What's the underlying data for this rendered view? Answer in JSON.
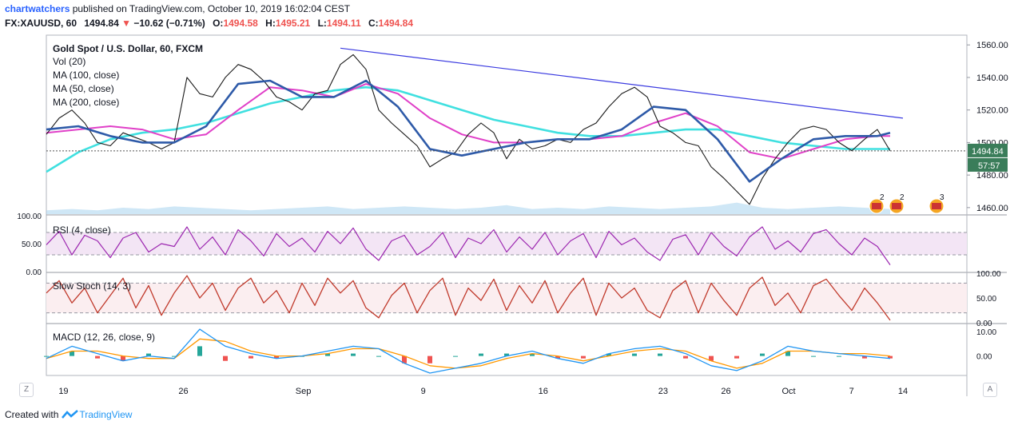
{
  "header": {
    "user": "chartwatchers",
    "published_text": " published on TradingView.com, October 10, 2019 16:02:04 CEST",
    "symbol": "FX:XAUUSD, 60",
    "last": "1494.84",
    "change": "−10.62 (−0.71%)",
    "o_label": "O:",
    "o": "1494.58",
    "h_label": "H:",
    "h": "1495.21",
    "l_label": "L:",
    "l": "1494.11",
    "c_label": "C:",
    "c": "1494.84"
  },
  "legend": {
    "title": "Gold Spot / U.S. Dollar, 60, FXCM",
    "vol": "Vol (20)",
    "ma100": "MA (100, close)",
    "ma50": "MA (50, close)",
    "ma200": "MA (200, close)"
  },
  "price_tag": "1494.84",
  "countdown": "57:57",
  "footer": {
    "created": "Created with",
    "brand": "TradingView"
  },
  "nav": {
    "left": "Z",
    "right": "A"
  },
  "colors": {
    "ma50": "#2e5aa8",
    "ma100": "#e040c8",
    "ma200": "#40e0e0",
    "trendline": "#3b3be0",
    "price": "#1a1a1a",
    "volume": "#a8d4ee",
    "rsi": "#9c27b0",
    "stoch": "#c0392b",
    "macd": "#2196f3",
    "signal": "#ff9800",
    "tag_bg": "#3a7d5a"
  },
  "events": [
    {
      "icon": "us-flag-icon",
      "count": "2",
      "x": "Oct 9"
    },
    {
      "icon": "us-flag-icon",
      "count": "2",
      "x": "Oct 10"
    },
    {
      "icon": "us-flag-icon",
      "count": "3",
      "x": "Oct 11"
    }
  ],
  "chart_data": {
    "type": "line",
    "x_ticks": [
      "19",
      "26",
      "Sep",
      "9",
      "16",
      "23",
      "26",
      "Oct",
      "7",
      "14"
    ],
    "price_axis": {
      "ticks": [
        "1560.00",
        "1540.00",
        "1520.00",
        "1500.00",
        "1480.00",
        "1460.00"
      ],
      "ylim": [
        1456,
        1566
      ]
    },
    "price_series": {
      "name": "XAUUSD",
      "x": [
        0,
        4,
        8,
        12,
        16,
        20,
        24,
        28,
        32,
        36,
        40,
        44,
        48,
        52,
        56,
        60,
        64,
        68,
        72,
        76,
        80,
        84,
        88,
        92,
        96,
        100,
        104,
        108,
        112,
        116,
        120,
        124,
        128,
        132,
        136,
        140,
        144,
        148,
        152,
        156,
        160,
        164,
        168,
        172,
        176,
        180,
        184,
        188,
        192,
        196,
        200,
        204,
        208,
        212,
        216,
        220,
        224,
        228,
        232,
        236,
        240,
        244,
        248,
        252,
        256,
        260,
        264
      ],
      "values": [
        1505,
        1515,
        1520,
        1512,
        1500,
        1498,
        1506,
        1503,
        1500,
        1496,
        1500,
        1540,
        1530,
        1528,
        1540,
        1548,
        1545,
        1538,
        1528,
        1525,
        1520,
        1530,
        1532,
        1548,
        1554,
        1545,
        1520,
        1512,
        1505,
        1498,
        1485,
        1490,
        1494,
        1505,
        1512,
        1506,
        1490,
        1502,
        1496,
        1498,
        1502,
        1500,
        1508,
        1512,
        1522,
        1530,
        1534,
        1528,
        1510,
        1506,
        1500,
        1498,
        1485,
        1478,
        1470,
        1462,
        1478,
        1490,
        1500,
        1508,
        1510,
        1508,
        1500,
        1495,
        1502,
        1508,
        1494.84
      ]
    },
    "ma50": {
      "name": "MA (50, close)",
      "x": [
        0,
        10,
        20,
        30,
        40,
        50,
        60,
        70,
        80,
        90,
        100,
        110,
        120,
        130,
        140,
        150,
        160,
        170,
        180,
        190,
        200,
        210,
        220,
        230,
        240,
        250,
        260,
        264
      ],
      "values": [
        1508,
        1510,
        1504,
        1500,
        1500,
        1510,
        1536,
        1538,
        1528,
        1528,
        1538,
        1522,
        1496,
        1492,
        1496,
        1500,
        1502,
        1502,
        1508,
        1522,
        1520,
        1502,
        1476,
        1490,
        1502,
        1504,
        1504,
        1506
      ]
    },
    "ma100": {
      "name": "MA (100, close)",
      "x": [
        0,
        10,
        20,
        30,
        40,
        50,
        60,
        70,
        80,
        90,
        100,
        110,
        120,
        130,
        140,
        150,
        160,
        170,
        180,
        190,
        200,
        210,
        220,
        230,
        240,
        250,
        260,
        264
      ],
      "values": [
        1506,
        1508,
        1510,
        1508,
        1502,
        1505,
        1520,
        1534,
        1532,
        1528,
        1536,
        1530,
        1515,
        1505,
        1500,
        1500,
        1502,
        1502,
        1504,
        1512,
        1518,
        1510,
        1494,
        1490,
        1496,
        1502,
        1504,
        1504
      ]
    },
    "ma200": {
      "name": "MA (200, close)",
      "x": [
        0,
        10,
        20,
        30,
        40,
        50,
        60,
        70,
        80,
        90,
        100,
        110,
        120,
        130,
        140,
        150,
        160,
        170,
        180,
        190,
        200,
        210,
        220,
        230,
        240,
        250,
        260,
        264
      ],
      "values": [
        1482,
        1494,
        1502,
        1506,
        1508,
        1512,
        1518,
        1524,
        1528,
        1532,
        1534,
        1532,
        1526,
        1520,
        1514,
        1510,
        1506,
        1504,
        1504,
        1506,
        1508,
        1508,
        1504,
        1500,
        1498,
        1496,
        1496,
        1496
      ]
    },
    "trendline": {
      "x": [
        92,
        268
      ],
      "values": [
        1558,
        1515
      ]
    },
    "volume": {
      "x": [
        0,
        8,
        16,
        24,
        32,
        40,
        48,
        56,
        64,
        72,
        80,
        88,
        96,
        104,
        112,
        120,
        128,
        136,
        144,
        152,
        160,
        168,
        176,
        184,
        192,
        200,
        208,
        216,
        224,
        232,
        240,
        248,
        256,
        264
      ],
      "values": [
        3,
        4,
        3,
        5,
        4,
        6,
        5,
        4,
        3,
        4,
        5,
        6,
        4,
        5,
        6,
        5,
        4,
        5,
        7,
        4,
        5,
        4,
        6,
        5,
        4,
        5,
        6,
        9,
        5,
        4,
        5,
        6,
        5,
        4
      ]
    },
    "rsi": {
      "name": "RSI (4, close)",
      "ylim": [
        0,
        100
      ],
      "ticks": [
        "100.00",
        "50.00",
        "0.00"
      ],
      "levels": [
        70,
        30
      ],
      "x": [
        0,
        4,
        8,
        12,
        16,
        20,
        24,
        28,
        32,
        36,
        40,
        44,
        48,
        52,
        56,
        60,
        64,
        68,
        72,
        76,
        80,
        84,
        88,
        92,
        96,
        100,
        104,
        108,
        112,
        116,
        120,
        124,
        128,
        132,
        136,
        140,
        144,
        148,
        152,
        156,
        160,
        164,
        168,
        172,
        176,
        180,
        184,
        188,
        192,
        196,
        200,
        204,
        208,
        212,
        216,
        220,
        224,
        228,
        232,
        236,
        240,
        244,
        248,
        252,
        256,
        260,
        264
      ],
      "values": [
        48,
        72,
        30,
        65,
        55,
        25,
        60,
        70,
        35,
        50,
        45,
        80,
        40,
        62,
        30,
        75,
        55,
        28,
        68,
        45,
        60,
        35,
        72,
        50,
        78,
        40,
        20,
        55,
        65,
        30,
        45,
        70,
        25,
        60,
        50,
        75,
        35,
        62,
        40,
        70,
        30,
        55,
        68,
        25,
        72,
        48,
        60,
        35,
        20,
        58,
        66,
        30,
        70,
        45,
        28,
        62,
        80,
        40,
        55,
        35,
        68,
        75,
        50,
        30,
        60,
        45,
        12
      ]
    },
    "stoch": {
      "name": "Slow Stoch (14, 3)",
      "ylim": [
        0,
        100
      ],
      "ticks": [
        "100.00",
        "50.00",
        "0.00"
      ],
      "levels": [
        80,
        20
      ],
      "x": [
        0,
        4,
        8,
        12,
        16,
        20,
        24,
        28,
        32,
        36,
        40,
        44,
        48,
        52,
        56,
        60,
        64,
        68,
        72,
        76,
        80,
        84,
        88,
        92,
        96,
        100,
        104,
        108,
        112,
        116,
        120,
        124,
        128,
        132,
        136,
        140,
        144,
        148,
        152,
        156,
        160,
        164,
        168,
        172,
        176,
        180,
        184,
        188,
        192,
        196,
        200,
        204,
        208,
        212,
        216,
        220,
        224,
        228,
        232,
        236,
        240,
        244,
        248,
        252,
        256,
        260,
        264
      ],
      "values": [
        60,
        85,
        40,
        70,
        20,
        55,
        90,
        30,
        75,
        15,
        60,
        95,
        50,
        80,
        25,
        70,
        90,
        40,
        65,
        20,
        80,
        35,
        90,
        60,
        85,
        30,
        10,
        55,
        80,
        20,
        65,
        90,
        15,
        70,
        45,
        88,
        25,
        75,
        40,
        85,
        20,
        60,
        90,
        15,
        80,
        50,
        70,
        25,
        10,
        65,
        85,
        20,
        80,
        45,
        15,
        70,
        92,
        35,
        60,
        20,
        75,
        88,
        55,
        25,
        70,
        40,
        5
      ]
    },
    "macd": {
      "name": "MACD (12, 26, close, 9)",
      "ylim": [
        -8,
        13
      ],
      "ticks": [
        "10.00",
        "0.00"
      ],
      "x": [
        0,
        8,
        16,
        24,
        32,
        40,
        48,
        56,
        64,
        72,
        80,
        88,
        96,
        104,
        112,
        120,
        128,
        136,
        144,
        152,
        160,
        168,
        176,
        184,
        192,
        200,
        208,
        216,
        224,
        232,
        240,
        248,
        256,
        264
      ],
      "macd_values": [
        -1,
        4,
        1,
        -2,
        0,
        -1,
        11,
        4,
        1,
        -1,
        0,
        2,
        4,
        3,
        -3,
        -7,
        -5,
        -3,
        0,
        2,
        -1,
        -3,
        1,
        3,
        4,
        1,
        -4,
        -6,
        -2,
        4,
        2,
        1,
        0,
        -1
      ],
      "signal_values": [
        -1,
        2,
        2,
        0,
        -1,
        -1,
        7,
        6,
        2,
        0,
        0,
        1,
        3,
        3,
        0,
        -4,
        -5,
        -4,
        -1,
        1,
        0,
        -2,
        0,
        2,
        3,
        2,
        -2,
        -5,
        -3,
        2,
        2,
        1,
        1,
        0
      ],
      "histogram": [
        0,
        2,
        -1,
        -2,
        1,
        0,
        4,
        -2,
        -1,
        -1,
        0,
        1,
        1,
        0,
        -3,
        -3,
        0,
        1,
        1,
        1,
        -1,
        -1,
        1,
        1,
        1,
        -1,
        -2,
        -1,
        1,
        2,
        0,
        0,
        -1,
        -1
      ]
    }
  }
}
